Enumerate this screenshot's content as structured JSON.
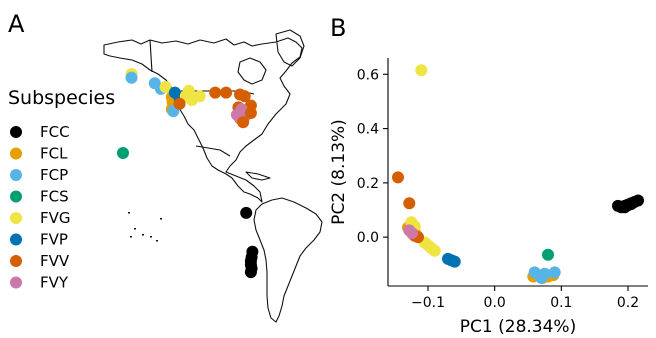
{
  "panels": {
    "a": "A",
    "b": "B"
  },
  "legend": {
    "title": "Subspecies",
    "items": [
      {
        "label": "FCC",
        "color": "#000000"
      },
      {
        "label": "FCL",
        "color": "#E69F00"
      },
      {
        "label": "FCP",
        "color": "#56B4E9"
      },
      {
        "label": "FCS",
        "color": "#009E73"
      },
      {
        "label": "FVG",
        "color": "#F0E442"
      },
      {
        "label": "FVP",
        "color": "#0072B2"
      },
      {
        "label": "FVV",
        "color": "#D55E00"
      },
      {
        "label": "FVY",
        "color": "#CC79A7"
      }
    ]
  },
  "map": {
    "samples": [
      {
        "s": "FVG",
        "lon": -150,
        "lat": 62
      },
      {
        "s": "FCP",
        "lon": -150,
        "lat": 60
      },
      {
        "s": "FCP",
        "lon": -135,
        "lat": 57
      },
      {
        "s": "FCP",
        "lon": -131,
        "lat": 54
      },
      {
        "s": "FVG",
        "lon": -128,
        "lat": 55
      },
      {
        "s": "FCL",
        "lon": -124,
        "lat": 49.5
      },
      {
        "s": "FCL",
        "lon": -123.5,
        "lat": 47
      },
      {
        "s": "FCL",
        "lon": -123,
        "lat": 45
      },
      {
        "s": "FCL",
        "lon": -121,
        "lat": 49
      },
      {
        "s": "FCL",
        "lon": -124,
        "lat": 43
      },
      {
        "s": "FCP",
        "lon": -123,
        "lat": 42
      },
      {
        "s": "FVP",
        "lon": -119,
        "lat": 49
      },
      {
        "s": "FVP",
        "lon": -122,
        "lat": 52
      },
      {
        "s": "FVG",
        "lon": -115,
        "lat": 50
      },
      {
        "s": "FVG",
        "lon": -111,
        "lat": 48
      },
      {
        "s": "FVG",
        "lon": -106,
        "lat": 50
      },
      {
        "s": "FVG",
        "lon": -113,
        "lat": 53
      },
      {
        "s": "FVV",
        "lon": -119,
        "lat": 46
      },
      {
        "s": "FVV",
        "lon": -96,
        "lat": 52
      },
      {
        "s": "FVV",
        "lon": -89,
        "lat": 52
      },
      {
        "s": "FVV",
        "lon": -80,
        "lat": 51
      },
      {
        "s": "FVV",
        "lon": -77,
        "lat": 50
      },
      {
        "s": "FVV",
        "lon": -73,
        "lat": 45
      },
      {
        "s": "FVV",
        "lon": -81,
        "lat": 44
      },
      {
        "s": "FVV",
        "lon": -75,
        "lat": 42
      },
      {
        "s": "FVY",
        "lon": -79,
        "lat": 43
      },
      {
        "s": "FVY",
        "lon": -82,
        "lat": 40
      },
      {
        "s": "FVY",
        "lon": -80,
        "lat": 38
      },
      {
        "s": "FVY",
        "lon": -77,
        "lat": 39
      },
      {
        "s": "FVV",
        "lon": -73,
        "lat": 41
      },
      {
        "s": "FVV",
        "lon": -78,
        "lat": 36
      },
      {
        "s": "FCS",
        "lon": -155.5,
        "lat": 19.5
      },
      {
        "s": "FCC",
        "lon": -76,
        "lat": -13
      },
      {
        "s": "FCC",
        "lon": -72,
        "lat": -34
      },
      {
        "s": "FCC",
        "lon": -72.5,
        "lat": -37
      },
      {
        "s": "FCC",
        "lon": -73,
        "lat": -39
      },
      {
        "s": "FCC",
        "lon": -73,
        "lat": -41
      },
      {
        "s": "FCC",
        "lon": -72.5,
        "lat": -43
      },
      {
        "s": "FCC",
        "lon": -73,
        "lat": -45
      }
    ]
  },
  "chart_data": {
    "type": "scatter",
    "xlabel": "PC1 (28.34%)",
    "ylabel": "PC2 (8.13%)",
    "xlim": [
      -0.16,
      0.23
    ],
    "ylim": [
      -0.18,
      0.66
    ],
    "xticks": [
      -0.1,
      0.0,
      0.1,
      0.2
    ],
    "xtick_labels": [
      "−0.1",
      "0.0",
      "0.1",
      "0.2"
    ],
    "yticks": [
      0.0,
      0.2,
      0.4,
      0.6
    ],
    "ytick_labels": [
      "0.0",
      "0.2",
      "0.4",
      "0.6"
    ],
    "grid": false,
    "series": [
      {
        "name": "FCC",
        "points": [
          [
            0.185,
            0.115
          ],
          [
            0.19,
            0.11
          ],
          [
            0.195,
            0.115
          ],
          [
            0.2,
            0.12
          ],
          [
            0.205,
            0.125
          ],
          [
            0.21,
            0.13
          ],
          [
            0.215,
            0.135
          ],
          [
            0.195,
            0.11
          ],
          [
            0.2,
            0.118
          ],
          [
            0.205,
            0.122
          ]
        ]
      },
      {
        "name": "FCL",
        "points": [
          [
            -0.13,
            0.035
          ],
          [
            -0.125,
            0.045
          ],
          [
            -0.12,
            0.02
          ],
          [
            0.058,
            -0.145
          ],
          [
            0.065,
            -0.14
          ],
          [
            0.072,
            -0.15
          ],
          [
            0.08,
            -0.145
          ],
          [
            0.088,
            -0.14
          ]
        ]
      },
      {
        "name": "FCP",
        "points": [
          [
            0.06,
            -0.13
          ],
          [
            0.07,
            -0.15
          ],
          [
            0.09,
            -0.13
          ],
          [
            0.075,
            -0.135
          ],
          [
            -0.065,
            -0.085
          ]
        ]
      },
      {
        "name": "FCS",
        "points": [
          [
            0.08,
            -0.065
          ]
        ]
      },
      {
        "name": "FVG",
        "points": [
          [
            -0.11,
            0.615
          ],
          [
            -0.125,
            0.055
          ],
          [
            -0.12,
            0.04
          ],
          [
            -0.105,
            -0.02
          ],
          [
            -0.095,
            -0.04
          ],
          [
            -0.09,
            -0.05
          ],
          [
            -0.1,
            -0.03
          ]
        ]
      },
      {
        "name": "FVP",
        "points": [
          [
            -0.07,
            -0.08
          ],
          [
            -0.065,
            -0.085
          ],
          [
            -0.06,
            -0.09
          ]
        ]
      },
      {
        "name": "FVV",
        "points": [
          [
            -0.145,
            0.22
          ],
          [
            -0.128,
            0.125
          ],
          [
            -0.122,
            0.01
          ],
          [
            -0.115,
            0.0
          ],
          [
            -0.12,
            0.005
          ]
        ]
      },
      {
        "name": "FVY",
        "points": [
          [
            -0.128,
            0.025
          ],
          [
            -0.124,
            0.015
          ]
        ]
      }
    ]
  }
}
